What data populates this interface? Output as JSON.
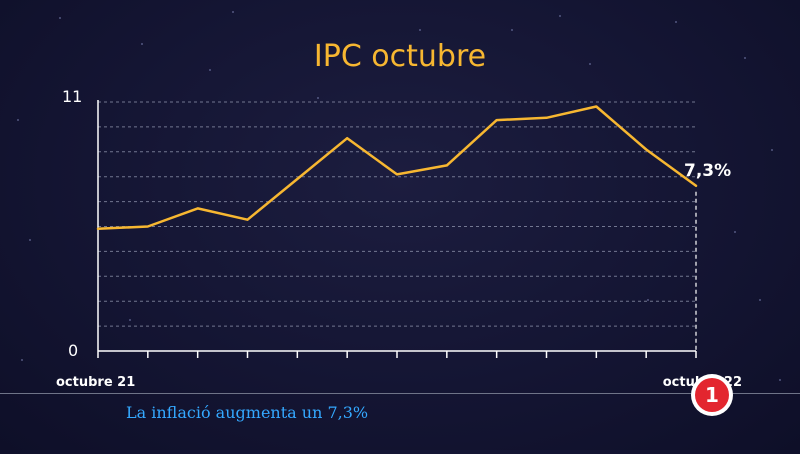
{
  "chart_data": {
    "type": "line",
    "title": "IPC octubre",
    "x": [
      "octubre 21",
      "",
      "",
      "",
      "",
      "",
      "",
      "",
      "",
      "",
      "",
      "",
      "octubre 22"
    ],
    "series": [
      {
        "values": [
          5.4,
          5.5,
          6.3,
          5.8,
          7.6,
          9.4,
          7.8,
          8.2,
          10.2,
          10.3,
          10.8,
          8.9,
          7.3
        ]
      }
    ],
    "ylim": [
      0,
      11
    ],
    "yticks": [
      "0",
      "11"
    ],
    "end_label": "7,3%",
    "grid": true,
    "colors": {
      "line": "#f7b731",
      "title": "#f7b731",
      "axis": "#ffffff",
      "grid": "#8a8fa8"
    }
  },
  "ticker": {
    "text": "La inflació augmenta un 7,3%"
  },
  "logo": {
    "text": "1",
    "icon": "tve-1-logo"
  }
}
